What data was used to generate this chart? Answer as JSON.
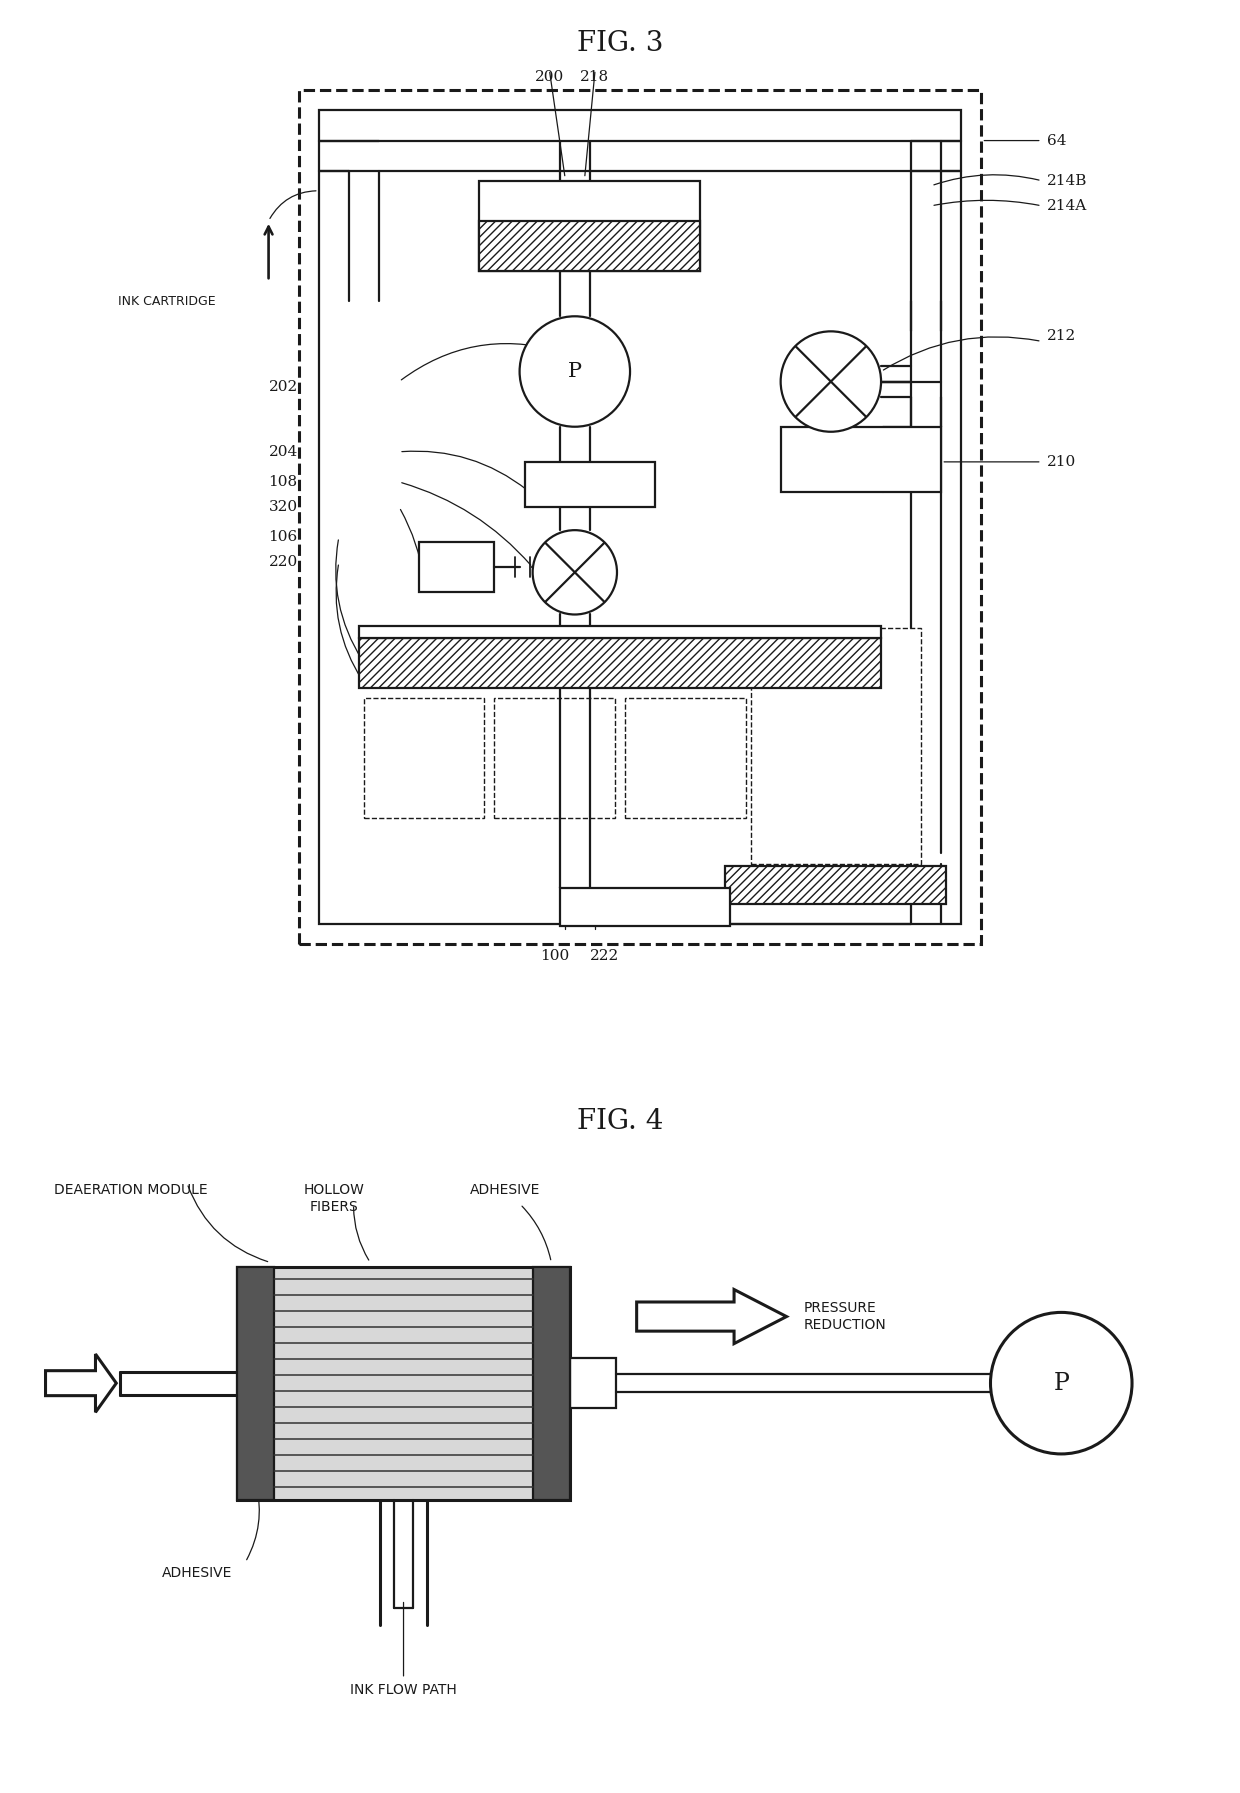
{
  "fig3_title": "FIG. 3",
  "fig4_title": "FIG. 4",
  "bg": "#ffffff",
  "lc": "#1a1a1a",
  "gray_light": "#cccccc",
  "gray_dot": "#aaaaaa",
  "ink_cartridge": "INK CARTRIDGE",
  "deaeration_module": "DEAERATION MODULE",
  "hollow_fibers": "HOLLOW\nFIBERS",
  "adhesive": "ADHESIVE",
  "adhesive_bot": "ADHESIVE",
  "pressure_reduction": "PRESSURE\nREDUCTION",
  "ink_flow_path": "INK FLOW PATH",
  "labels3": [
    "200",
    "218",
    "64",
    "214B",
    "214A",
    "202",
    "212",
    "204",
    "108",
    "320",
    "106",
    "220",
    "210",
    "100",
    "222"
  ]
}
